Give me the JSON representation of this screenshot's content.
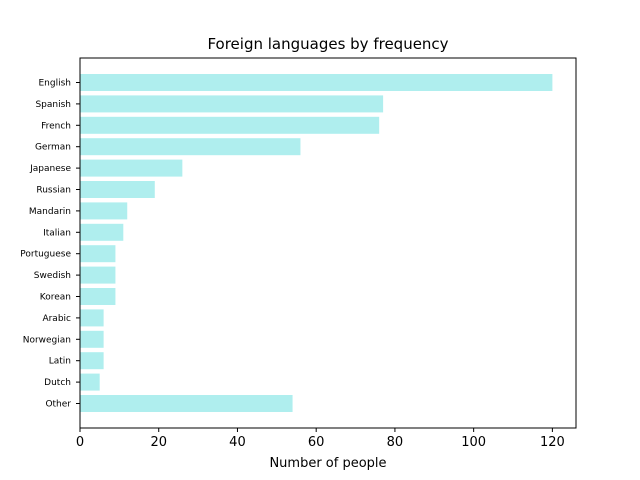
{
  "chart_data": {
    "type": "bar",
    "orientation": "horizontal",
    "title": "Foreign languages by frequency",
    "xlabel": "Number of people",
    "ylabel": "",
    "categories": [
      "English",
      "Spanish",
      "French",
      "German",
      "Japanese",
      "Russian",
      "Mandarin",
      "Italian",
      "Portuguese",
      "Swedish",
      "Korean",
      "Arabic",
      "Norwegian",
      "Latin",
      "Dutch",
      "Other"
    ],
    "values": [
      120,
      77,
      76,
      56,
      26,
      19,
      12,
      11,
      9,
      9,
      9,
      6,
      6,
      6,
      5,
      54
    ],
    "xlim": [
      0,
      126
    ],
    "xticks": [
      0,
      20,
      40,
      60,
      80,
      100,
      120
    ],
    "grid": false,
    "bar_color": "#afeeee"
  }
}
